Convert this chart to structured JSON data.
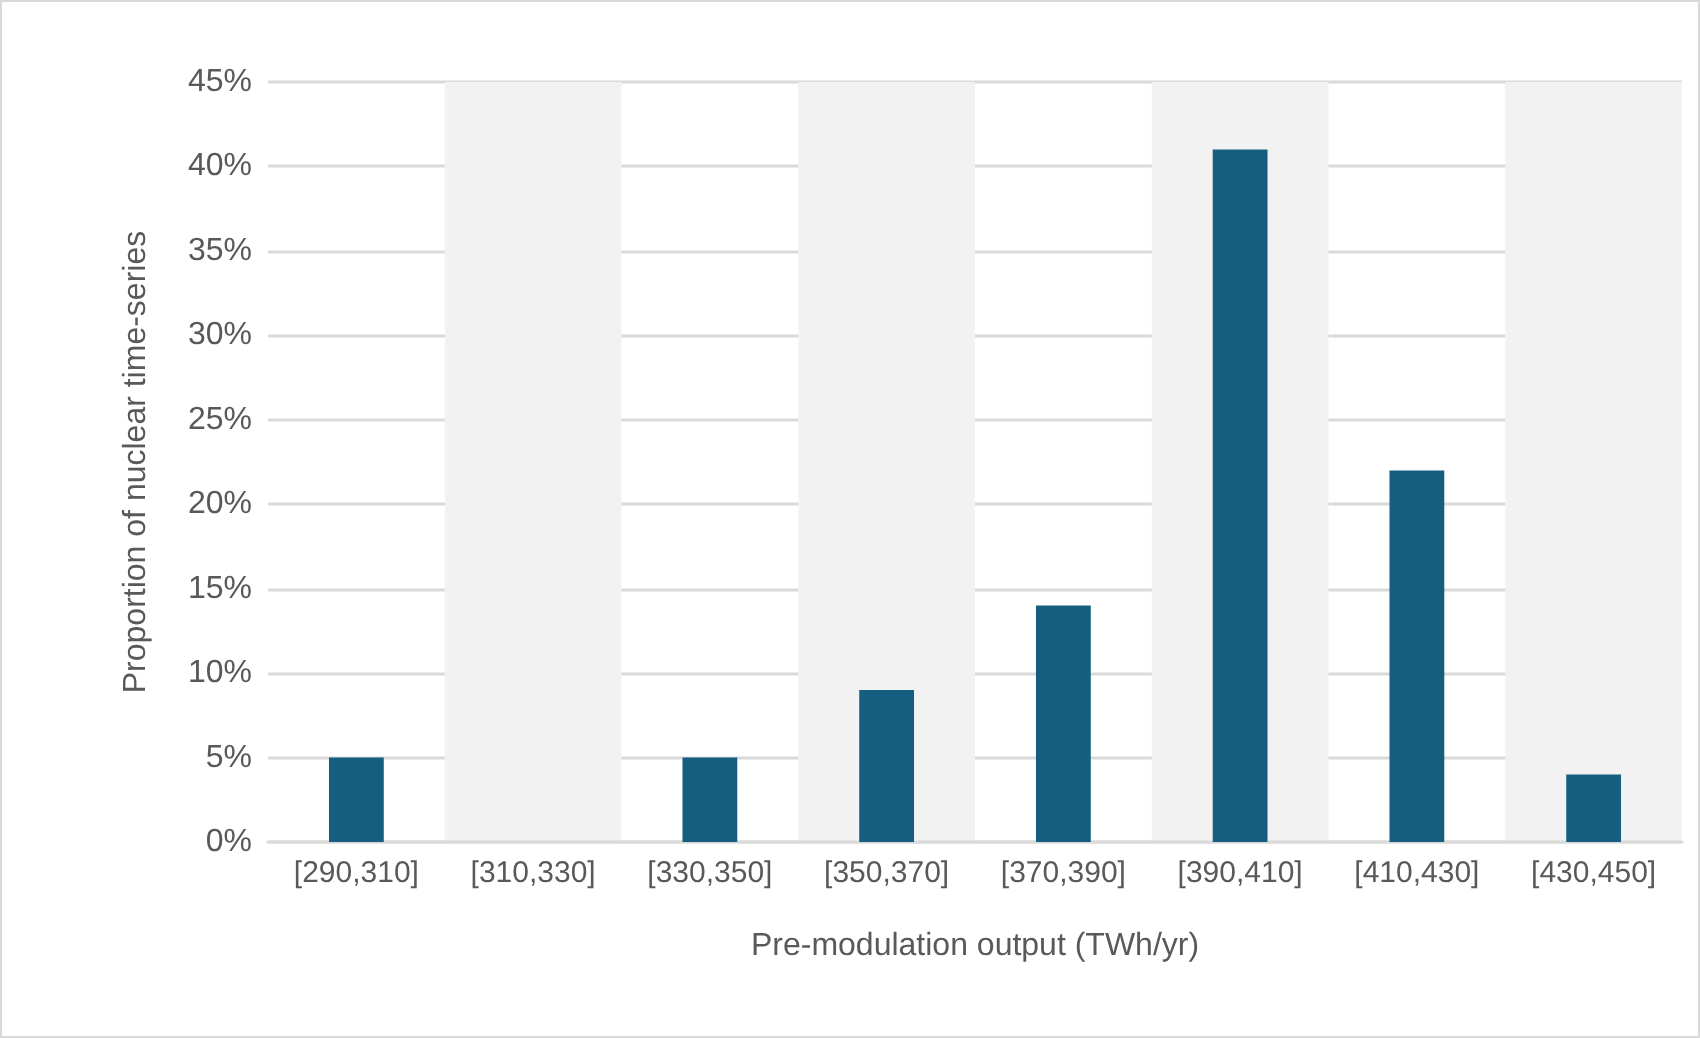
{
  "chart_data": {
    "type": "bar",
    "xlabel": "Pre-modulation output (TWh/yr)",
    "ylabel": "Proportion of nuclear time-series",
    "categories": [
      "[290,310]",
      "[310,330]",
      "[330,350]",
      "[350,370]",
      "[370,390]",
      "[390,410]",
      "[410,430]",
      "[430,450]"
    ],
    "values": [
      5,
      0,
      5,
      9,
      14,
      41,
      22,
      4
    ],
    "color": "#155e80",
    "ylim": [
      0,
      45
    ],
    "yticks": [
      {
        "value": 0,
        "label": "0%"
      },
      {
        "value": 5,
        "label": "5%"
      },
      {
        "value": 10,
        "label": "10%"
      },
      {
        "value": 15,
        "label": "15%"
      },
      {
        "value": 20,
        "label": "20%"
      },
      {
        "value": 25,
        "label": "25%"
      },
      {
        "value": 30,
        "label": "30%"
      },
      {
        "value": 35,
        "label": "35%"
      },
      {
        "value": 40,
        "label": "40%"
      },
      {
        "value": 45,
        "label": "45%"
      }
    ],
    "bands": [
      {
        "axis": "x",
        "from": "[310,330]",
        "to": "[310,330]",
        "color": "#f2f2f2"
      },
      {
        "axis": "x",
        "from": "[350,370]",
        "to": "[350,370]",
        "color": "#f2f2f2"
      },
      {
        "axis": "x",
        "from": "[390,410]",
        "to": "[390,410]",
        "color": "#f2f2f2"
      },
      {
        "axis": "x",
        "from": "[430,450]",
        "to": "[430,450]",
        "color": "#f2f2f2"
      }
    ],
    "grid": "y"
  }
}
